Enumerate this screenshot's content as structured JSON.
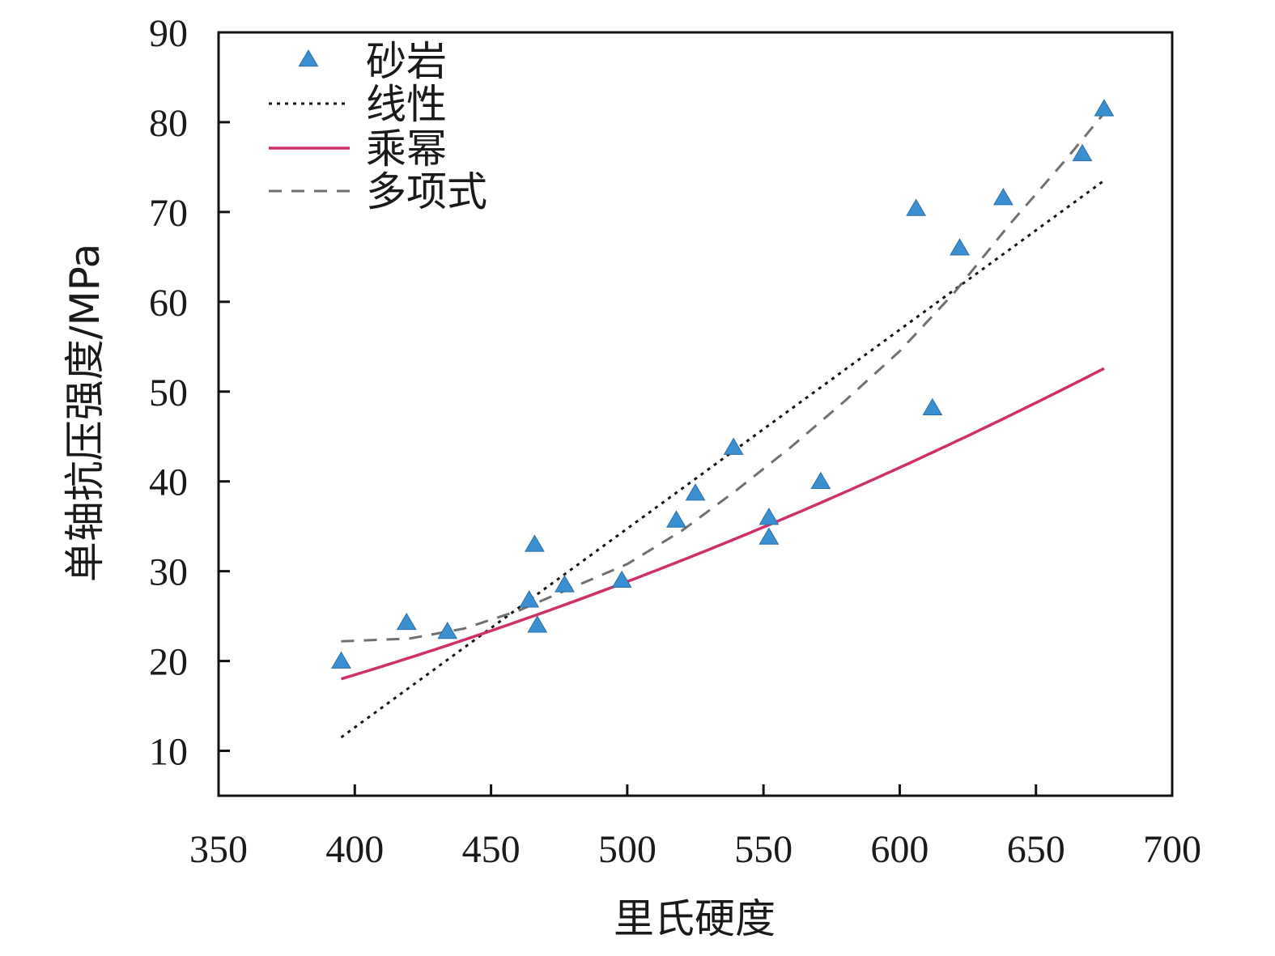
{
  "chart_data": {
    "type": "scatter",
    "xlabel": "里氏硬度",
    "ylabel": "单轴抗压强度/MPa",
    "xlim": [
      350,
      700
    ],
    "ylim": [
      5,
      90
    ],
    "xticks": [
      350,
      400,
      450,
      500,
      550,
      600,
      650,
      700
    ],
    "yticks": [
      10,
      20,
      30,
      40,
      50,
      60,
      70,
      80,
      90
    ],
    "grid": false,
    "legend_position": "top-left",
    "colors": {
      "points": "#3a8fd0",
      "linear": "#111111",
      "power": "#d0306a",
      "poly": "#707070"
    },
    "legend": [
      {
        "key": "points",
        "label": "砂岩"
      },
      {
        "key": "linear",
        "label": "线性"
      },
      {
        "key": "power",
        "label": "乘幂"
      },
      {
        "key": "poly",
        "label": "多项式"
      }
    ],
    "points": [
      {
        "x": 395,
        "y": 20
      },
      {
        "x": 419,
        "y": 24.3
      },
      {
        "x": 434,
        "y": 23.3
      },
      {
        "x": 464,
        "y": 26.8
      },
      {
        "x": 466,
        "y": 33
      },
      {
        "x": 467,
        "y": 24
      },
      {
        "x": 477,
        "y": 28.5
      },
      {
        "x": 498,
        "y": 29
      },
      {
        "x": 518,
        "y": 35.7
      },
      {
        "x": 525,
        "y": 38.7
      },
      {
        "x": 539,
        "y": 43.8
      },
      {
        "x": 552,
        "y": 36
      },
      {
        "x": 552,
        "y": 33.8
      },
      {
        "x": 571,
        "y": 40
      },
      {
        "x": 606,
        "y": 70.4
      },
      {
        "x": 612,
        "y": 48.2
      },
      {
        "x": 622,
        "y": 66
      },
      {
        "x": 638,
        "y": 71.6
      },
      {
        "x": 667,
        "y": 76.5
      },
      {
        "x": 675,
        "y": 81.5
      }
    ],
    "fits": {
      "linear": {
        "x_range": [
          395,
          675
        ],
        "y_range": [
          11.5,
          73.5
        ]
      },
      "power": {
        "x_range": [
          395,
          675
        ],
        "coef": 0.0001154,
        "exponent": 2.0
      }
    },
    "poly_curve": [
      [
        395,
        22.2
      ],
      [
        420,
        22.5
      ],
      [
        440,
        23.6
      ],
      [
        460,
        25.6
      ],
      [
        480,
        28.2
      ],
      [
        500,
        30.8
      ],
      [
        520,
        34.5
      ],
      [
        540,
        39
      ],
      [
        560,
        43.8
      ],
      [
        580,
        49
      ],
      [
        600,
        54.5
      ],
      [
        620,
        61
      ],
      [
        640,
        68.5
      ],
      [
        660,
        75.5
      ],
      [
        675,
        81
      ]
    ]
  }
}
